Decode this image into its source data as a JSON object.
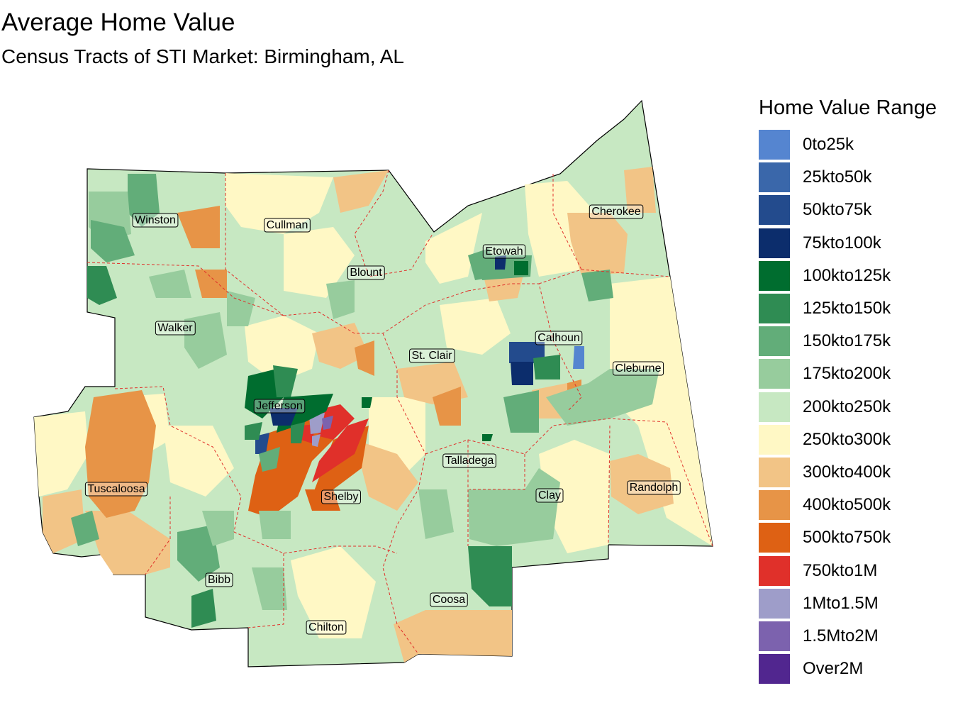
{
  "title": "Average Home Value",
  "subtitle": "Census Tracts of STI Market: Birmingham, AL",
  "legend": {
    "title": "Home Value Range",
    "items": [
      {
        "label": "0to25k",
        "color": "#5585d0"
      },
      {
        "label": "25kto50k",
        "color": "#3a67aa"
      },
      {
        "label": "50kto75k",
        "color": "#234b8d"
      },
      {
        "label": "75kto100k",
        "color": "#0c2d6c"
      },
      {
        "label": "100kto125k",
        "color": "#006d2f"
      },
      {
        "label": "125kto150k",
        "color": "#2f8c53"
      },
      {
        "label": "150kto175k",
        "color": "#62ad79"
      },
      {
        "label": "175kto200k",
        "color": "#97cc9d"
      },
      {
        "label": "200kto250k",
        "color": "#c7e8c2"
      },
      {
        "label": "250kto300k",
        "color": "#fff8c5"
      },
      {
        "label": "300kto400k",
        "color": "#f2c486"
      },
      {
        "label": "400kto500k",
        "color": "#e79447"
      },
      {
        "label": "500kto750k",
        "color": "#de6114"
      },
      {
        "label": "750kto1M",
        "color": "#e0302a"
      },
      {
        "label": "1Mto1.5M",
        "color": "#9e9dc9"
      },
      {
        "label": "1.5Mto2M",
        "color": "#7c62ae"
      },
      {
        "label": "Over2M",
        "color": "#51268f"
      }
    ]
  },
  "counties": [
    {
      "name": "Winston"
    },
    {
      "name": "Cullman"
    },
    {
      "name": "Blount"
    },
    {
      "name": "Etowah"
    },
    {
      "name": "Cherokee"
    },
    {
      "name": "Walker"
    },
    {
      "name": "St. Clair"
    },
    {
      "name": "Calhoun"
    },
    {
      "name": "Cleburne"
    },
    {
      "name": "Jefferson"
    },
    {
      "name": "Talladega"
    },
    {
      "name": "Tuscaloosa"
    },
    {
      "name": "Shelby"
    },
    {
      "name": "Clay"
    },
    {
      "name": "Randolph"
    },
    {
      "name": "Bibb"
    },
    {
      "name": "Coosa"
    },
    {
      "name": "Chilton"
    }
  ]
}
